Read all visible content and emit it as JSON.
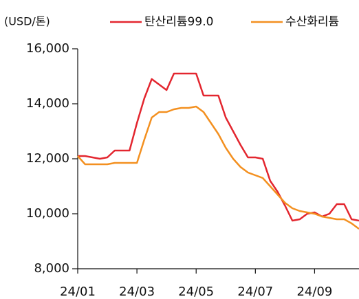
{
  "chart_data": {
    "type": "line",
    "y_label": "(USD/톤)",
    "categories": [
      "24/01",
      null,
      null,
      null,
      null,
      null,
      null,
      null,
      "24/03",
      null,
      null,
      null,
      null,
      null,
      null,
      null,
      "24/05",
      null,
      null,
      null,
      null,
      null,
      null,
      null,
      "24/07",
      null,
      null,
      null,
      null,
      null,
      null,
      null,
      "24/09",
      null,
      null,
      null,
      null,
      null,
      null
    ],
    "series": [
      {
        "name": "탄산리튬99.0",
        "color": "#e3262f",
        "values": [
          12100,
          12100,
          12050,
          12000,
          12050,
          12300,
          12300,
          12300,
          13300,
          14200,
          14900,
          14700,
          14500,
          15100,
          15100,
          15100,
          15100,
          14300,
          14300,
          14300,
          13500,
          13000,
          12500,
          12050,
          12050,
          12000,
          11200,
          10800,
          10300,
          9750,
          9800,
          10000,
          10050,
          9900,
          10000,
          10350,
          10350,
          9800,
          9750
        ]
      },
      {
        "name": "수산화리튬",
        "color": "#f39020",
        "values": [
          12100,
          11800,
          11800,
          11800,
          11800,
          11850,
          11850,
          11850,
          11850,
          12700,
          13500,
          13700,
          13700,
          13800,
          13850,
          13850,
          13900,
          13700,
          13300,
          12900,
          12400,
          12000,
          11700,
          11500,
          11400,
          11300,
          11000,
          10700,
          10400,
          10200,
          10100,
          10050,
          10000,
          9900,
          9850,
          9800,
          9800,
          9650,
          9450
        ]
      }
    ],
    "ylim": [
      8000,
      16000
    ],
    "yticks": [
      {
        "value": 8000,
        "label": "8,000"
      },
      {
        "value": 10000,
        "label": "10,000"
      },
      {
        "value": 12000,
        "label": "12,000"
      },
      {
        "value": 14000,
        "label": "14,000"
      },
      {
        "value": 16000,
        "label": "16,000"
      }
    ],
    "legend": "top"
  }
}
